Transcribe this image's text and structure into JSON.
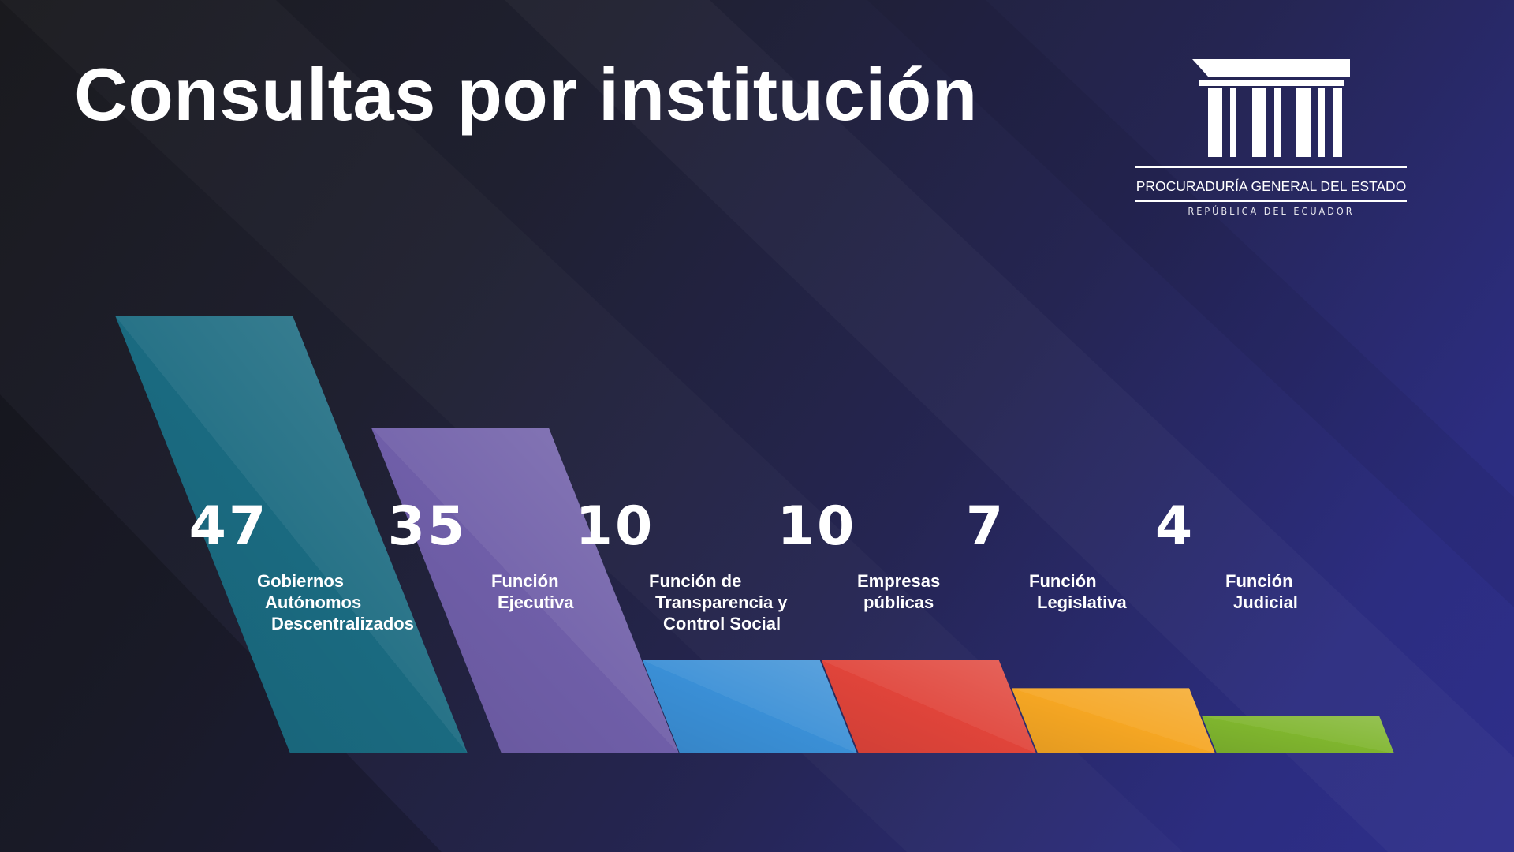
{
  "title": "Consultas por institución",
  "logo": {
    "name": "PROCURADURÍA GENERAL DEL ESTADO",
    "subtitle": "REPÚBLICA DEL ECUADOR"
  },
  "colors": {
    "gad": "#1a6a80",
    "ejecutiva": "#6f5ea8",
    "transparencia": "#3a8fd6",
    "empresas": "#e0443a",
    "legislativa": "#f5a623",
    "judicial": "#7fb52e"
  },
  "chart_data": {
    "type": "bar",
    "title": "Consultas por institución",
    "categories": [
      "Gobiernos Autónomos Descentralizados",
      "Función Ejecutiva",
      "Función de Transparencia y Control Social",
      "Empresas públicas",
      "Función Legislativa",
      "Función Judicial"
    ],
    "values": [
      47,
      35,
      10,
      10,
      7,
      4
    ],
    "value_labels": [
      "47",
      "35",
      "10",
      "10",
      "7",
      "4"
    ],
    "label_lines": [
      [
        "Gobiernos",
        "Autónomos",
        "Descentralizados"
      ],
      [
        "Función",
        "Ejecutiva"
      ],
      [
        "Función de",
        "Transparencia y",
        "Control Social"
      ],
      [
        "Empresas",
        "públicas"
      ],
      [
        "Función",
        "Legislativa"
      ],
      [
        "Función",
        "Judicial"
      ]
    ],
    "bar_colors": [
      "#1a6a80",
      "#6f5ea8",
      "#3a8fd6",
      "#e0443a",
      "#f5a623",
      "#7fb52e"
    ],
    "grid": false,
    "legend": "none"
  }
}
